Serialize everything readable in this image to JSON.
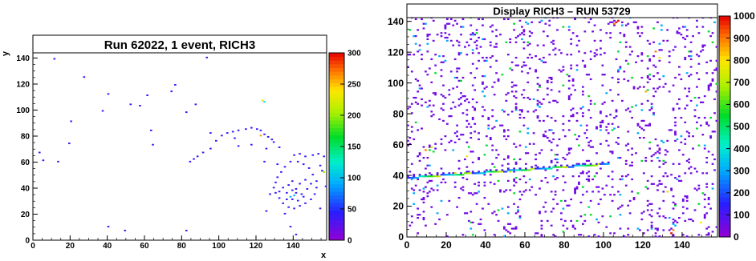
{
  "chart_data": [
    {
      "type": "heatmap",
      "title": "Run 62022, 1 event, RICH3",
      "xlabel": "x",
      "ylabel": "y",
      "xlim": [
        0,
        158
      ],
      "ylim": [
        0,
        144
      ],
      "zlim": [
        0,
        300
      ],
      "x_ticks": [
        0,
        20,
        40,
        60,
        80,
        100,
        120,
        140
      ],
      "y_ticks": [
        0,
        20,
        40,
        60,
        80,
        100,
        120,
        140
      ],
      "z_ticks": [
        0,
        50,
        100,
        150,
        200,
        250,
        300
      ],
      "stats_box": false,
      "points": [
        [
          11,
          139,
          40
        ],
        [
          27,
          125,
          40
        ],
        [
          40,
          112,
          40
        ],
        [
          52,
          104,
          40
        ],
        [
          61,
          111,
          40
        ],
        [
          76,
          119,
          40
        ],
        [
          74,
          114,
          40
        ],
        [
          93,
          140,
          40
        ],
        [
          20,
          91,
          40
        ],
        [
          37,
          99,
          40
        ],
        [
          57,
          103,
          40
        ],
        [
          87,
          104,
          40
        ],
        [
          63,
          84,
          40
        ],
        [
          64,
          73,
          40
        ],
        [
          82,
          98,
          40
        ],
        [
          19,
          74,
          40
        ],
        [
          3,
          67,
          40
        ],
        [
          5,
          61,
          40
        ],
        [
          13,
          60,
          40
        ],
        [
          40,
          10,
          40
        ],
        [
          49,
          7,
          40
        ],
        [
          82,
          7,
          40
        ],
        [
          138,
          10,
          40
        ],
        [
          141,
          4,
          40
        ],
        [
          123,
          107,
          230
        ],
        [
          124,
          106,
          120
        ],
        [
          98,
          76,
          40
        ],
        [
          101,
          80,
          40
        ],
        [
          104,
          82,
          40
        ],
        [
          107,
          83,
          40
        ],
        [
          110,
          84,
          40
        ],
        [
          114,
          85,
          40
        ],
        [
          117,
          86,
          40
        ],
        [
          120,
          85,
          40
        ],
        [
          122,
          84,
          40
        ],
        [
          124,
          81,
          40
        ],
        [
          126,
          79,
          40
        ],
        [
          128,
          77,
          40
        ],
        [
          122,
          80,
          260
        ],
        [
          95,
          70,
          40
        ],
        [
          91,
          67,
          40
        ],
        [
          88,
          64,
          40
        ],
        [
          86,
          62,
          40
        ],
        [
          84,
          60,
          40
        ],
        [
          110,
          72,
          40
        ],
        [
          117,
          73,
          40
        ],
        [
          125,
          70,
          40
        ],
        [
          129,
          75,
          40
        ],
        [
          132,
          71,
          40
        ],
        [
          95,
          82,
          40
        ],
        [
          108,
          78,
          40
        ],
        [
          140,
          65,
          40
        ],
        [
          143,
          66,
          40
        ],
        [
          146,
          64,
          40
        ],
        [
          150,
          65,
          40
        ],
        [
          153,
          66,
          40
        ],
        [
          156,
          64,
          40
        ],
        [
          138,
          60,
          40
        ],
        [
          135,
          56,
          40
        ],
        [
          133,
          52,
          40
        ],
        [
          131,
          48,
          40
        ],
        [
          130,
          44,
          40
        ],
        [
          129,
          40,
          40
        ],
        [
          130,
          36,
          40
        ],
        [
          132,
          32,
          40
        ],
        [
          134,
          28,
          40
        ],
        [
          137,
          25,
          40
        ],
        [
          140,
          24,
          40
        ],
        [
          143,
          26,
          40
        ],
        [
          146,
          28,
          40
        ],
        [
          149,
          31,
          40
        ],
        [
          151,
          35,
          40
        ],
        [
          152,
          40,
          40
        ],
        [
          152,
          45,
          40
        ],
        [
          150,
          50,
          40
        ],
        [
          148,
          55,
          40
        ],
        [
          145,
          58,
          40
        ],
        [
          142,
          60,
          40
        ],
        [
          155,
          53,
          40
        ],
        [
          154,
          57,
          40
        ],
        [
          134,
          40,
          40
        ],
        [
          137,
          42,
          40
        ],
        [
          139,
          38,
          40
        ],
        [
          141,
          36,
          40
        ],
        [
          144,
          35,
          40
        ],
        [
          136,
          31,
          40
        ],
        [
          139,
          31,
          40
        ],
        [
          142,
          30,
          40
        ],
        [
          145,
          33,
          40
        ],
        [
          138,
          33,
          90
        ],
        [
          140,
          34,
          90
        ],
        [
          147,
          39,
          40
        ],
        [
          132,
          37,
          40
        ],
        [
          143,
          43,
          40
        ],
        [
          146,
          46,
          40
        ],
        [
          149,
          43,
          40
        ],
        [
          139,
          45,
          40
        ],
        [
          127,
          35,
          40
        ],
        [
          141,
          39,
          40
        ],
        [
          136,
          36,
          40
        ],
        [
          154,
          24,
          40
        ],
        [
          125,
          22,
          40
        ],
        [
          135,
          20,
          40
        ],
        [
          157,
          41,
          40
        ],
        [
          156,
          52,
          200
        ],
        [
          131,
          58,
          40
        ],
        [
          124,
          60,
          40
        ]
      ]
    },
    {
      "type": "heatmap",
      "title": "Display RICH3 – RUN 53729",
      "xlabel": "",
      "ylabel": "",
      "xlim": [
        0,
        158
      ],
      "ylim": [
        0,
        144
      ],
      "zlim": [
        0,
        1000
      ],
      "x_ticks": [
        0,
        20,
        40,
        60,
        80,
        100,
        120,
        140
      ],
      "y_ticks": [
        0,
        20,
        40,
        60,
        80,
        100,
        120,
        140
      ],
      "z_ticks": [
        0,
        100,
        200,
        300,
        400,
        500,
        600,
        700,
        800,
        900,
        1000
      ],
      "background_hits_per_cell_probability": 0.055,
      "background_value": 50,
      "track": {
        "x0": 0,
        "x1": 102,
        "y0": 38,
        "y1": 47
      },
      "hot_spots": [
        [
          106,
          139,
          1000
        ],
        [
          107,
          140,
          1000
        ],
        [
          105,
          138,
          900
        ],
        [
          134,
          2,
          1000
        ],
        [
          135,
          4,
          900
        ],
        [
          126,
          120,
          900
        ],
        [
          128,
          116,
          800
        ],
        [
          121,
          94,
          850
        ],
        [
          9,
          56,
          900
        ],
        [
          12,
          58,
          700
        ],
        [
          30,
          52,
          800
        ],
        [
          24,
          41,
          800
        ],
        [
          52,
          42,
          700
        ],
        [
          92,
          19,
          500
        ],
        [
          149,
          9,
          800
        ],
        [
          132,
          29,
          750
        ]
      ]
    }
  ]
}
